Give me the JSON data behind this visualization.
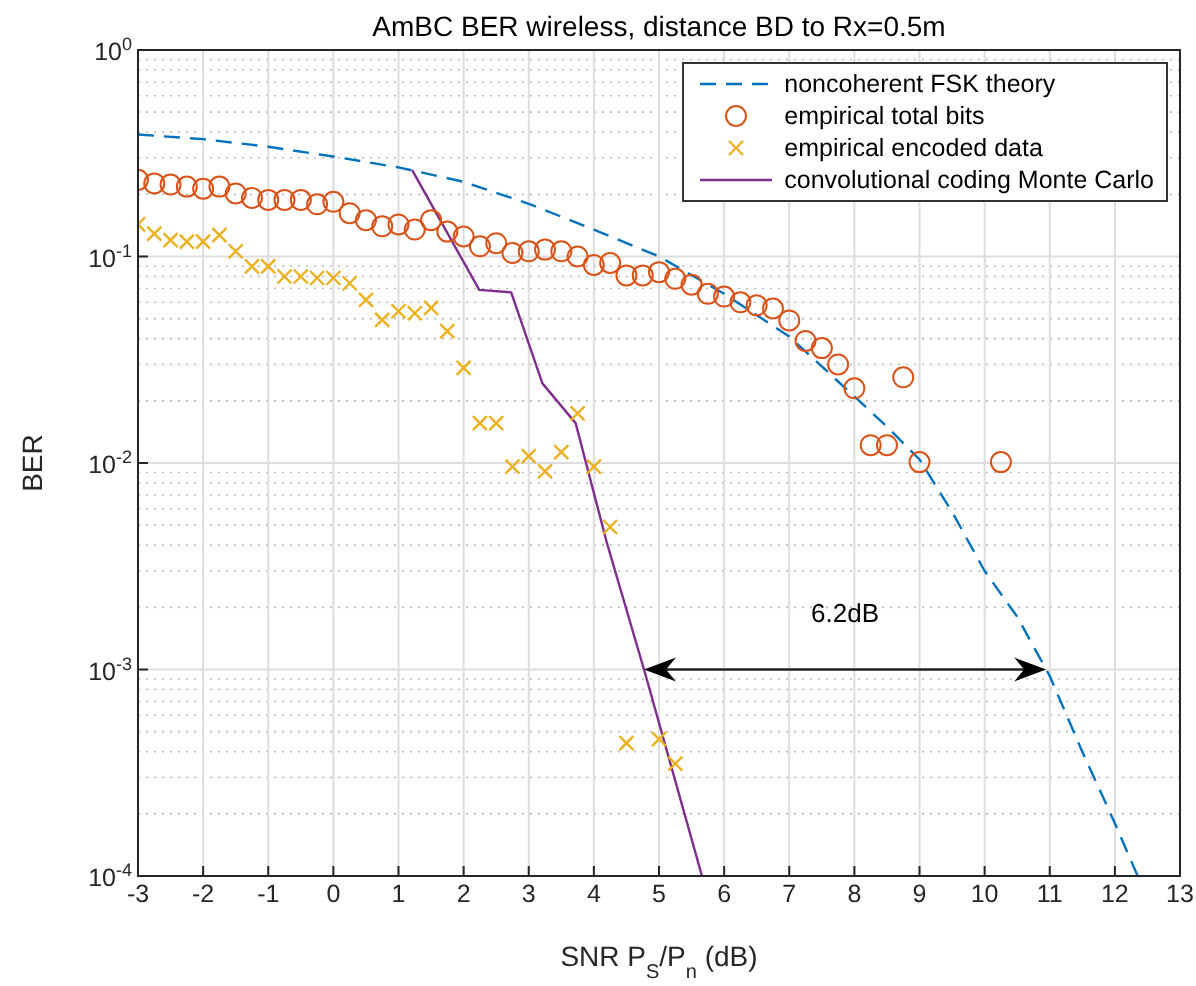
{
  "chart_data": {
    "type": "line",
    "title": "AmBC BER wireless, distance BD to Rx=0.5m",
    "xlabel": "SNR P$_{S}$/P$_{n}$ (dB)",
    "ylabel": "BER",
    "log": "y",
    "grid": true,
    "legend": "top right",
    "xlim": [
      -3,
      13
    ],
    "xticks": [
      -3,
      -2,
      -1,
      0,
      1,
      2,
      3,
      4,
      5,
      6,
      7,
      8,
      9,
      10,
      11,
      12,
      13
    ],
    "ylim": [
      0.0001,
      1
    ],
    "yticks": [
      {
        "value": 0.0001,
        "label": "10$^{-4}$"
      },
      {
        "value": 0.001,
        "label": "10$^{-3}$"
      },
      {
        "value": 0.01,
        "label": "10$^{-2}$"
      },
      {
        "value": 0.1,
        "label": "10$^{-1}$"
      },
      {
        "value": 1,
        "label": "10$^{0}$"
      }
    ],
    "annotations": [
      "6.2dB"
    ],
    "series": [
      {
        "name": "noncoherent FSK theory",
        "color": "#0072bd",
        "line_style": "dashed",
        "marker": "none",
        "x": [
          -3,
          -2,
          -1,
          0,
          1,
          2,
          3,
          4,
          5,
          6,
          7,
          8,
          8.5,
          9,
          9.5,
          10,
          10.5,
          11,
          11.5,
          12,
          12.35
        ],
        "values": [
          0.39,
          0.37,
          0.34,
          0.305,
          0.27,
          0.23,
          0.18,
          0.135,
          0.1,
          0.066,
          0.041,
          0.021,
          0.015,
          0.0104,
          0.0058,
          0.003,
          0.0018,
          0.00093,
          0.0004,
          0.00018,
          0.0001
        ]
      },
      {
        "name": "empirical total bits",
        "type": "scatter",
        "color": "#d95319",
        "marker": "circle",
        "x": [
          -3,
          -2.75,
          -2.5,
          -2.25,
          -2,
          -1.75,
          -1.5,
          -1.25,
          -1,
          -0.75,
          -0.5,
          -0.25,
          0,
          0.25,
          0.5,
          0.75,
          1,
          1.25,
          1.5,
          1.75,
          2,
          2.25,
          2.5,
          2.75,
          3,
          3.25,
          3.5,
          3.75,
          4,
          4.25,
          4.5,
          4.75,
          5,
          5.25,
          5.5,
          5.75,
          6,
          6.25,
          6.5,
          6.75,
          7,
          7.25,
          7.5,
          7.75,
          8,
          8.25,
          8.5,
          8.75,
          9,
          10.25
        ],
        "values": [
          0.235,
          0.226,
          0.223,
          0.218,
          0.213,
          0.218,
          0.202,
          0.192,
          0.188,
          0.188,
          0.188,
          0.179,
          0.184,
          0.162,
          0.15,
          0.14,
          0.143,
          0.135,
          0.15,
          0.132,
          0.125,
          0.112,
          0.116,
          0.104,
          0.106,
          0.108,
          0.106,
          0.1,
          0.091,
          0.093,
          0.081,
          0.081,
          0.084,
          0.078,
          0.073,
          0.066,
          0.064,
          0.06,
          0.058,
          0.056,
          0.049,
          0.039,
          0.036,
          0.03,
          0.023,
          0.0122,
          0.0122,
          0.026,
          0.0101,
          0.0101
        ]
      },
      {
        "name": "empirical encoded data",
        "type": "scatter",
        "color": "#edb120",
        "marker": "cross",
        "x": [
          -3,
          -2.75,
          -2.5,
          -2.25,
          -2,
          -1.75,
          -1.5,
          -1.25,
          -1,
          -0.75,
          -0.5,
          -0.25,
          0,
          0.25,
          0.5,
          0.75,
          1,
          1.25,
          1.5,
          1.75,
          2,
          2.25,
          2.5,
          2.75,
          3,
          3.25,
          3.5,
          3.75,
          4,
          4.25,
          4.5,
          5,
          5.25
        ],
        "values": [
          0.143,
          0.129,
          0.12,
          0.118,
          0.118,
          0.127,
          0.106,
          0.0895,
          0.0895,
          0.08,
          0.08,
          0.0787,
          0.0787,
          0.0742,
          0.0617,
          0.0493,
          0.0543,
          0.0531,
          0.0564,
          0.0435,
          0.0289,
          0.0156,
          0.0156,
          0.0096,
          0.0108,
          0.0091,
          0.0113,
          0.0174,
          0.0096,
          0.0049,
          0.00044,
          0.00046,
          0.00035
        ]
      },
      {
        "name": "convolutional coding Monte Carlo",
        "color": "#7e2f8e",
        "line_style": "solid",
        "marker": "none",
        "x": [
          1.21,
          2.24,
          2.73,
          3.21,
          3.72,
          4.2,
          4.77,
          5.66
        ],
        "values": [
          0.262,
          0.0689,
          0.067,
          0.0243,
          0.0156,
          0.0041,
          0.001,
          0.0001
        ]
      }
    ]
  }
}
